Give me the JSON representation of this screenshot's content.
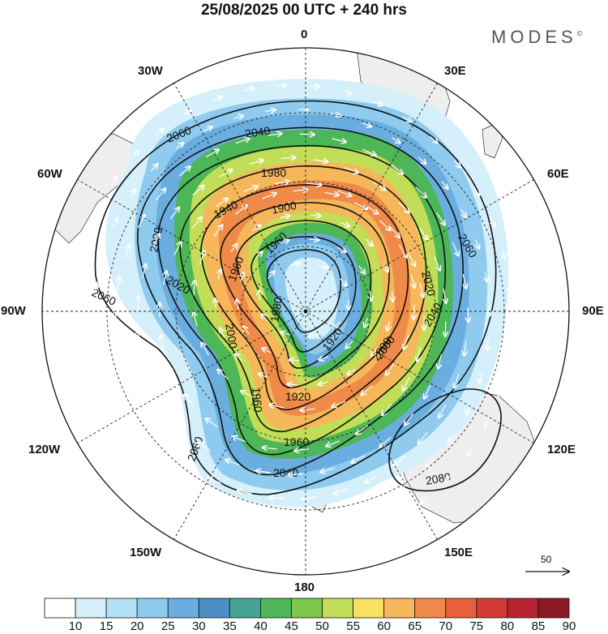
{
  "title": "25/08/2025  00 UTC  + 240 hrs",
  "brand": "MODES",
  "brand_mark": "©",
  "longitude_labels": {
    "lon_0": "0",
    "lon_30e": "30E",
    "lon_60e": "60E",
    "lon_90e": "90E",
    "lon_120e": "120E",
    "lon_150e": "150E",
    "lon_180": "180",
    "lon_150w": "150W",
    "lon_120w": "120W",
    "lon_90w": "90W",
    "lon_60w": "60W",
    "lon_30w": "30W"
  },
  "reference_vector": "50",
  "contour_labels": [
    "2060",
    "2040",
    "1980",
    "1940",
    "1900",
    "1960",
    "2060",
    "2020",
    "2000",
    "2020",
    "1960",
    "1920",
    "1920",
    "1960",
    "2000",
    "2040",
    "1960",
    "1980",
    "2040",
    "2060",
    "2020",
    "2060",
    "2000",
    "2080"
  ],
  "colorbar": {
    "levels": [
      "10",
      "15",
      "20",
      "25",
      "30",
      "35",
      "40",
      "45",
      "50",
      "55",
      "60",
      "65",
      "70",
      "75",
      "80",
      "85",
      "90"
    ],
    "colors": [
      "#ffffff",
      "#d5f0fb",
      "#b3e2f7",
      "#8ecbee",
      "#6aaddf",
      "#4b8fc6",
      "#48a397",
      "#4db657",
      "#7cc64a",
      "#c2dd57",
      "#f7e063",
      "#f6b75a",
      "#f08a48",
      "#e6603d",
      "#d33b35",
      "#b82331",
      "#8c1a24"
    ]
  }
}
